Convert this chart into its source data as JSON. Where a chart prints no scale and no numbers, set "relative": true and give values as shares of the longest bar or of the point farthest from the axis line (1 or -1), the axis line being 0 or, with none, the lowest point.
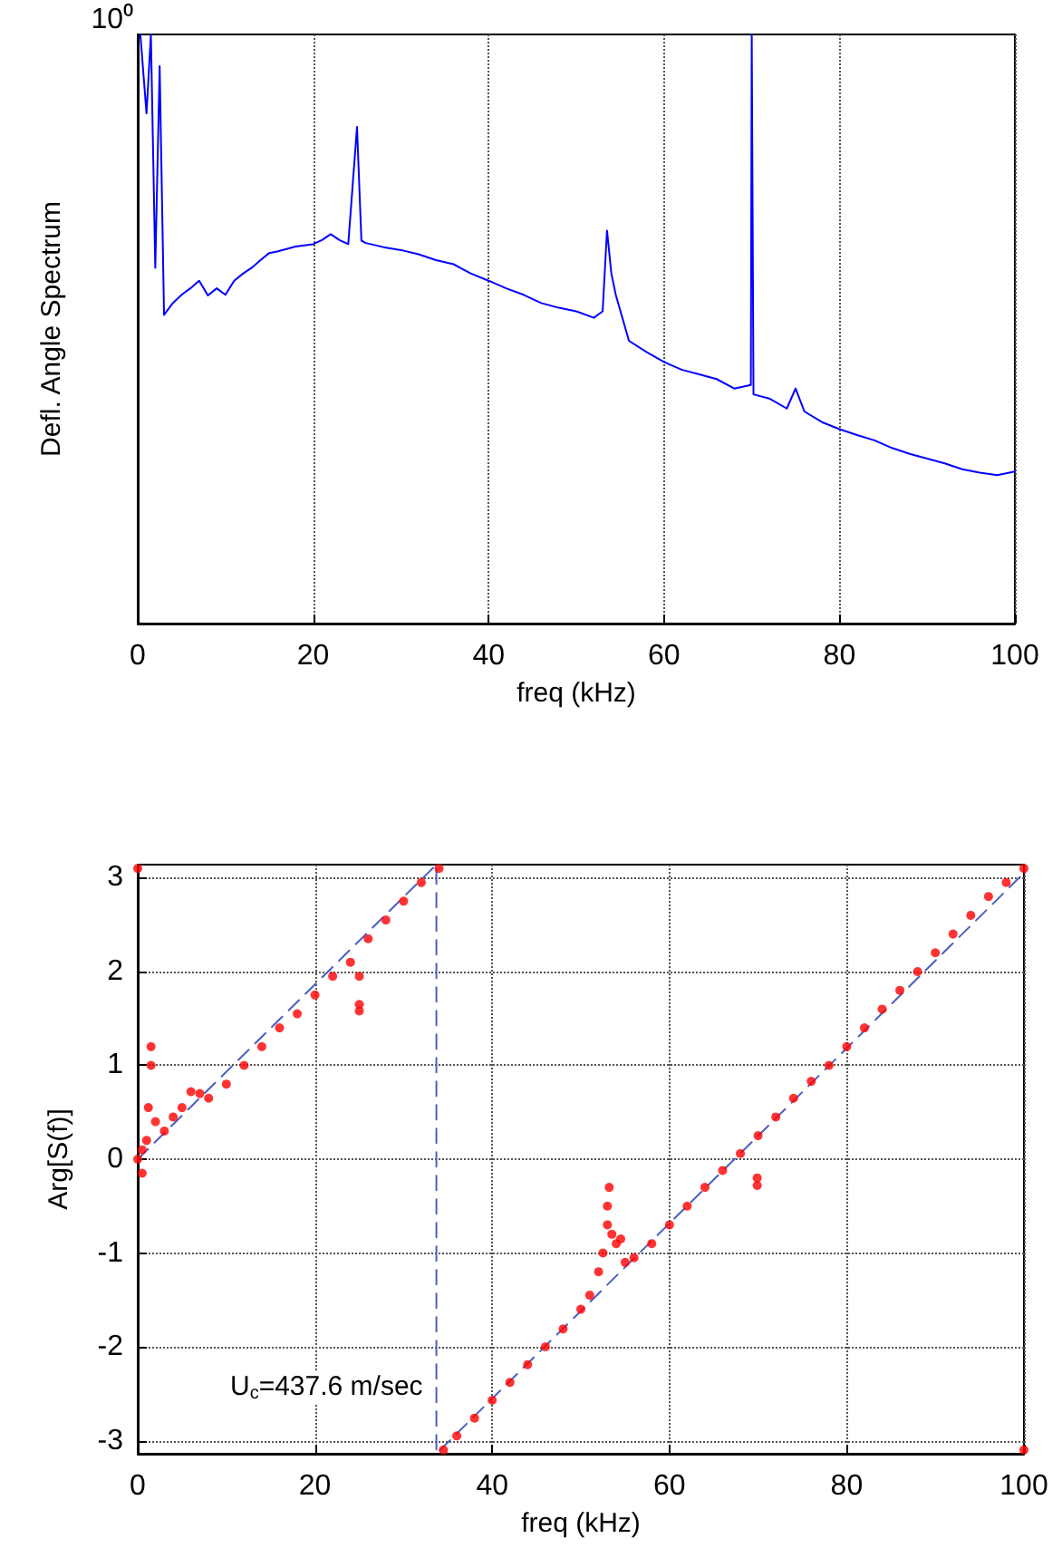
{
  "chart_data": [
    {
      "type": "line",
      "xlabel": "freq (kHz)",
      "ylabel": "Defl. Angle Spectrum",
      "relative": true,
      "grid": "x",
      "marker": "none",
      "line_style": "solid",
      "xlim": [
        0,
        100
      ],
      "xticks": [
        0,
        20,
        40,
        60,
        80,
        100
      ],
      "annotations": [
        "10⁰"
      ],
      "series": [
        {
          "color": "#0000ff",
          "x": [
            0.3,
            1,
            1.5,
            2,
            2.5,
            3,
            4,
            5,
            6,
            7,
            8,
            9,
            10,
            11,
            12,
            13,
            14,
            15,
            16,
            18,
            20,
            21,
            22,
            23,
            24,
            25,
            25.5,
            26,
            28,
            30,
            32,
            34,
            36,
            38,
            40,
            42,
            44,
            46,
            48,
            50,
            52,
            53,
            53.5,
            54,
            54.5,
            56,
            58,
            60,
            62,
            64,
            66,
            68,
            69.9,
            70,
            70.2,
            72,
            74,
            75,
            76,
            78,
            80,
            82,
            84,
            86,
            88,
            90,
            92,
            94,
            96,
            98,
            100
          ],
          "values": [
            1.0,
            0.866,
            1.0,
            0.604,
            0.946,
            0.524,
            0.544,
            0.558,
            0.569,
            0.582,
            0.557,
            0.569,
            0.558,
            0.582,
            0.594,
            0.604,
            0.617,
            0.629,
            0.632,
            0.64,
            0.644,
            0.651,
            0.661,
            0.651,
            0.644,
            0.843,
            0.65,
            0.646,
            0.639,
            0.634,
            0.627,
            0.617,
            0.61,
            0.594,
            0.582,
            0.569,
            0.558,
            0.544,
            0.536,
            0.53,
            0.519,
            0.53,
            0.667,
            0.594,
            0.558,
            0.48,
            0.461,
            0.444,
            0.431,
            0.423,
            0.415,
            0.399,
            0.405,
            1.0,
            0.389,
            0.382,
            0.365,
            0.399,
            0.36,
            0.342,
            0.33,
            0.32,
            0.311,
            0.298,
            0.288,
            0.28,
            0.272,
            0.262,
            0.256,
            0.252,
            0.258
          ]
        }
      ]
    },
    {
      "type": "scatter",
      "xlabel": "freq (kHz)",
      "ylabel": "Arg[S(f)]",
      "grid": true,
      "xlim": [
        0,
        100
      ],
      "xticks": [
        0,
        20,
        40,
        60,
        80,
        100
      ],
      "ylim": [
        -3.14,
        3.14
      ],
      "yticks": [
        -3,
        -2,
        -1,
        0,
        1,
        2,
        3
      ],
      "annotations": [
        "U$_{c}$=437.6 m/sec"
      ],
      "series": [
        {
          "color": "#ff0000",
          "marker": "circle",
          "x": [
            0,
            0,
            0.5,
            0.5,
            1,
            1.2,
            1.5,
            1.5,
            2,
            3,
            4,
            5,
            6,
            7,
            8,
            10,
            12,
            14,
            16,
            18,
            20,
            22,
            24,
            25,
            25,
            25,
            26,
            28,
            30,
            32,
            34,
            34.5,
            36,
            38,
            40,
            42,
            44,
            46,
            48,
            50,
            51,
            52,
            52.5,
            53,
            53,
            53.2,
            53.5,
            54,
            54.5,
            55,
            56,
            58,
            60,
            62,
            64,
            66,
            68,
            69.9,
            69.9,
            70,
            72,
            74,
            76,
            78,
            80,
            82,
            84,
            86,
            88,
            90,
            92,
            94,
            96,
            98,
            100,
            100
          ],
          "values": [
            0,
            3.1,
            -0.15,
            0.1,
            0.2,
            0.55,
            1.2,
            1.0,
            0.4,
            0.3,
            0.45,
            0.55,
            0.72,
            0.7,
            0.65,
            0.8,
            1.0,
            1.2,
            1.4,
            1.55,
            1.75,
            1.95,
            2.1,
            1.95,
            1.65,
            1.58,
            2.35,
            2.55,
            2.75,
            2.95,
            3.1,
            -3.1,
            -2.95,
            -2.76,
            -2.57,
            -2.38,
            -2.19,
            -2.0,
            -1.81,
            -1.6,
            -1.45,
            -1.2,
            -1.0,
            -0.7,
            -0.5,
            -0.3,
            -0.8,
            -0.9,
            -0.85,
            -1.1,
            -1.05,
            -0.9,
            -0.7,
            -0.5,
            -0.3,
            -0.12,
            0.06,
            -0.2,
            -0.28,
            0.25,
            0.45,
            0.65,
            0.83,
            1.0,
            1.2,
            1.4,
            1.6,
            1.8,
            2.0,
            2.2,
            2.4,
            2.6,
            2.8,
            2.95,
            3.1,
            -3.1
          ]
        },
        {
          "type": "line",
          "color": "#4a5fc1",
          "line_style": "dashed",
          "x": [
            0,
            33.7,
            33.7,
            100
          ],
          "values": [
            0,
            3.14,
            -3.14,
            3.05
          ]
        }
      ]
    }
  ]
}
